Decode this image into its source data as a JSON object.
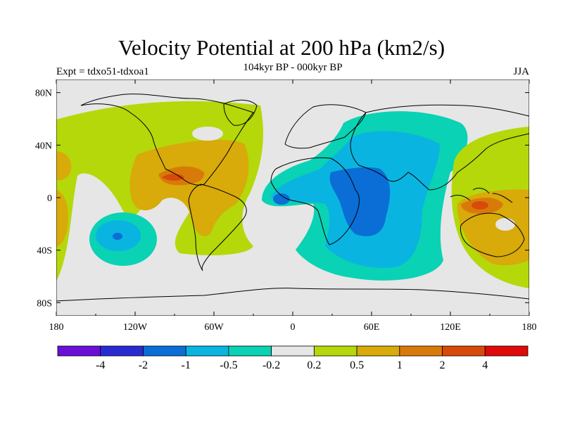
{
  "chart_data": {
    "type": "heatmap",
    "title": "Velocity Potential at 200 hPa (km2/s)",
    "subtitle": "104kyr BP - 000kyr BP",
    "left_label": "Expt = tdxo51-tdxoa1",
    "right_label": "JJA",
    "x_ticks": [
      "180",
      "120W",
      "60W",
      "0",
      "60E",
      "120E",
      "180"
    ],
    "y_ticks": [
      "80N",
      "40N",
      "0",
      "40S",
      "80S"
    ],
    "xlim": [
      -180,
      180
    ],
    "ylim": [
      -90,
      90
    ],
    "colorbar": {
      "levels": [
        "-4",
        "-2",
        "-1",
        "-0.5",
        "-0.2",
        "0.2",
        "0.5",
        "1",
        "2",
        "4"
      ],
      "colors": [
        "#6a0fd8",
        "#2a2ad2",
        "#0a6ed6",
        "#0ab4e0",
        "#0ad2b4",
        "#e6e6e6",
        "#b4d80a",
        "#d8aa0a",
        "#d87a0a",
        "#d84a0a",
        "#e00a0a"
      ]
    },
    "regions": [
      {
        "name": "central-african-indian-negative-1",
        "level": -1,
        "lon": 42,
        "lat": -5,
        "rx": 32,
        "ry": 20
      },
      {
        "name": "east-pacific-negative-1",
        "level": -1,
        "lon": -130,
        "lat": -27,
        "rx": 14,
        "ry": 8
      },
      {
        "name": "maritime-positive-2",
        "level": 2,
        "lon": 148,
        "lat": -5,
        "rx": 12,
        "ry": 6
      },
      {
        "name": "central-america-positive-2",
        "level": 2,
        "lon": -90,
        "lat": 18,
        "rx": 18,
        "ry": 5
      }
    ]
  }
}
